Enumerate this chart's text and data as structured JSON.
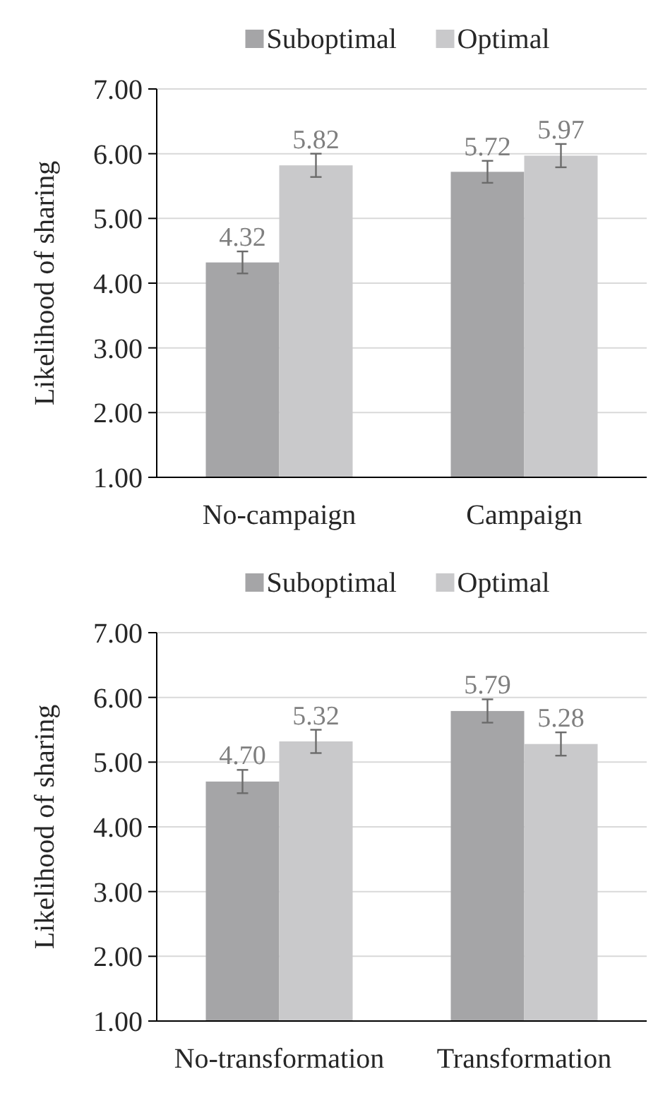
{
  "chart_data": [
    {
      "type": "bar",
      "categories": [
        "No-campaign",
        "Campaign"
      ],
      "ylabel": "Likelihood of sharing",
      "ylim": [
        1,
        7
      ],
      "yticks": [
        {
          "value": 1,
          "label": "1.00"
        },
        {
          "value": 2,
          "label": "2.00"
        },
        {
          "value": 3,
          "label": "3.00"
        },
        {
          "value": 4,
          "label": "4.00"
        },
        {
          "value": 5,
          "label": "5.00"
        },
        {
          "value": 6,
          "label": "6.00"
        },
        {
          "value": 7,
          "label": "7.00"
        }
      ],
      "grid": "y",
      "legend": "top",
      "series": [
        {
          "name": "Suboptimal",
          "color": "#a5a5a7",
          "values": [
            4.32,
            5.72
          ],
          "value_labels": [
            "4.32",
            "5.72"
          ],
          "errors": [
            0.17,
            0.17
          ]
        },
        {
          "name": "Optimal",
          "color": "#c9c9cb",
          "values": [
            5.82,
            5.97
          ],
          "value_labels": [
            "5.82",
            "5.97"
          ],
          "errors": [
            0.18,
            0.18
          ]
        }
      ]
    },
    {
      "type": "bar",
      "categories": [
        "No-transformation",
        "Transformation"
      ],
      "ylabel": "Likelihood of sharing",
      "ylim": [
        1,
        7
      ],
      "yticks": [
        {
          "value": 1,
          "label": "1.00"
        },
        {
          "value": 2,
          "label": "2.00"
        },
        {
          "value": 3,
          "label": "3.00"
        },
        {
          "value": 4,
          "label": "4.00"
        },
        {
          "value": 5,
          "label": "5.00"
        },
        {
          "value": 6,
          "label": "6.00"
        },
        {
          "value": 7,
          "label": "7.00"
        }
      ],
      "grid": "y",
      "legend": "top",
      "series": [
        {
          "name": "Suboptimal",
          "color": "#a5a5a7",
          "values": [
            4.7,
            5.79
          ],
          "value_labels": [
            "4.70",
            "5.79"
          ],
          "errors": [
            0.18,
            0.18
          ]
        },
        {
          "name": "Optimal",
          "color": "#c9c9cb",
          "values": [
            5.32,
            5.28
          ],
          "value_labels": [
            "5.32",
            "5.28"
          ],
          "errors": [
            0.18,
            0.18
          ]
        }
      ]
    }
  ]
}
